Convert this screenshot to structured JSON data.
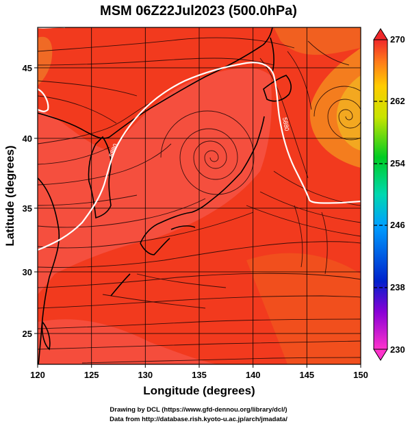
{
  "title": "MSM 06Z22Jul2023 (500.0hPa)",
  "xlabel": "Longitude (degrees)",
  "ylabel": "Latitude  (degrees)",
  "xaxis": {
    "ticks": [
      "120",
      "125",
      "130",
      "135",
      "140",
      "145",
      "150"
    ],
    "range": [
      120,
      150
    ]
  },
  "yaxis": {
    "ticks": [
      "25",
      "30",
      "35",
      "40",
      "45"
    ],
    "range": [
      22.4,
      47.6
    ]
  },
  "colorbar": {
    "ticks": [
      "230",
      "238",
      "246",
      "254",
      "262",
      "270"
    ],
    "range": [
      230,
      270
    ]
  },
  "contour_labels": [
    "5880",
    "5880"
  ],
  "credits": {
    "line1": "Drawing by DCL (https://www.gfd-dennou.org/library/dcl/)",
    "line2": "Data from http://database.rish.kyoto-u.ac.jp/arch/jmadata/"
  },
  "colors": {
    "field_main": "#f23a1e",
    "field_warm": "#f85c58",
    "field_cool": "#f5a020",
    "contour": "#ffffff",
    "coast": "#000000"
  }
}
